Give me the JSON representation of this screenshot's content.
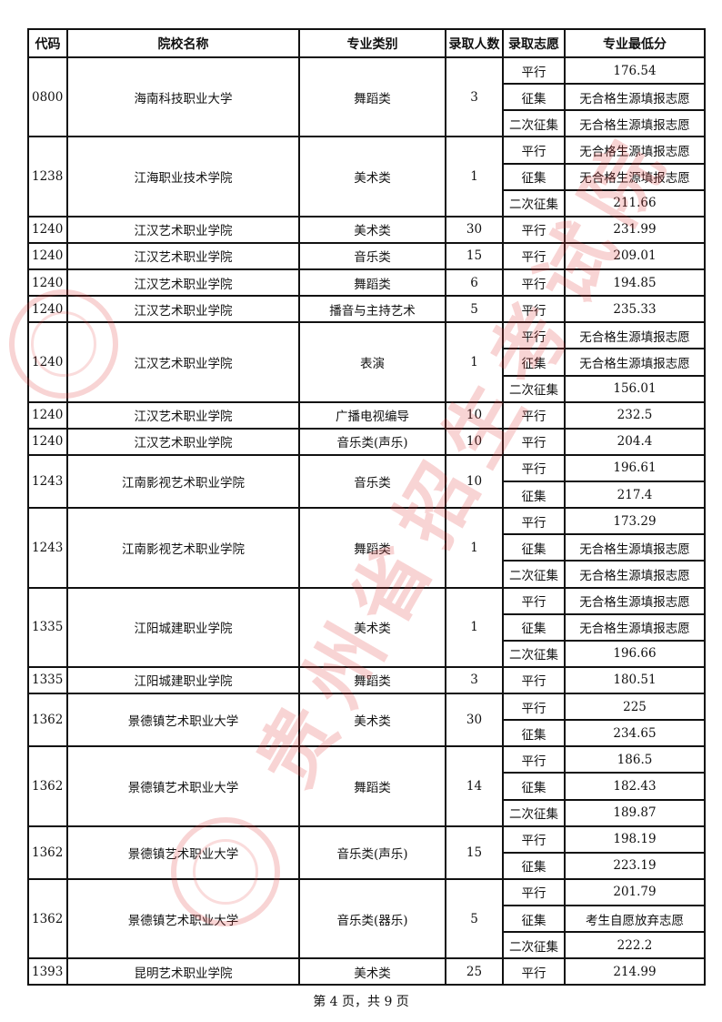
{
  "table": {
    "headers": [
      "代码",
      "院校名称",
      "专业类别",
      "录取人数",
      "录取志愿",
      "专业最低分"
    ],
    "groups": [
      {
        "code": "0800",
        "school": "海南科技职业大学",
        "major": "舞蹈类",
        "count": "3",
        "subs": [
          [
            "平行",
            "176.54"
          ],
          [
            "征集",
            "无合格生源填报志愿"
          ],
          [
            "二次征集",
            "无合格生源填报志愿"
          ]
        ]
      },
      {
        "code": "1238",
        "school": "江海职业技术学院",
        "major": "美术类",
        "count": "1",
        "subs": [
          [
            "平行",
            "无合格生源填报志愿"
          ],
          [
            "征集",
            "无合格生源填报志愿"
          ],
          [
            "二次征集",
            "211.66"
          ]
        ]
      },
      {
        "code": "1240",
        "school": "江汉艺术职业学院",
        "major": "美术类",
        "count": "30",
        "subs": [
          [
            "平行",
            "231.99"
          ]
        ]
      },
      {
        "code": "1240",
        "school": "江汉艺术职业学院",
        "major": "音乐类",
        "count": "15",
        "subs": [
          [
            "平行",
            "209.01"
          ]
        ]
      },
      {
        "code": "1240",
        "school": "江汉艺术职业学院",
        "major": "舞蹈类",
        "count": "6",
        "subs": [
          [
            "平行",
            "194.85"
          ]
        ]
      },
      {
        "code": "1240",
        "school": "江汉艺术职业学院",
        "major": "播音与主持艺术",
        "count": "5",
        "subs": [
          [
            "平行",
            "235.33"
          ]
        ]
      },
      {
        "code": "1240",
        "school": "江汉艺术职业学院",
        "major": "表演",
        "count": "1",
        "subs": [
          [
            "平行",
            "无合格生源填报志愿"
          ],
          [
            "征集",
            "无合格生源填报志愿"
          ],
          [
            "二次征集",
            "156.01"
          ]
        ]
      },
      {
        "code": "1240",
        "school": "江汉艺术职业学院",
        "major": "广播电视编导",
        "count": "10",
        "subs": [
          [
            "平行",
            "232.5"
          ]
        ]
      },
      {
        "code": "1240",
        "school": "江汉艺术职业学院",
        "major": "音乐类(声乐)",
        "count": "10",
        "subs": [
          [
            "平行",
            "204.4"
          ]
        ]
      },
      {
        "code": "1243",
        "school": "江南影视艺术职业学院",
        "major": "音乐类",
        "count": "10",
        "subs": [
          [
            "平行",
            "196.61"
          ],
          [
            "征集",
            "217.4"
          ]
        ]
      },
      {
        "code": "1243",
        "school": "江南影视艺术职业学院",
        "major": "舞蹈类",
        "count": "1",
        "subs": [
          [
            "平行",
            "173.29"
          ],
          [
            "征集",
            "无合格生源填报志愿"
          ],
          [
            "二次征集",
            "无合格生源填报志愿"
          ]
        ]
      },
      {
        "code": "1335",
        "school": "江阳城建职业学院",
        "major": "美术类",
        "count": "1",
        "subs": [
          [
            "平行",
            "无合格生源填报志愿"
          ],
          [
            "征集",
            "无合格生源填报志愿"
          ],
          [
            "二次征集",
            "196.66"
          ]
        ]
      },
      {
        "code": "1335",
        "school": "江阳城建职业学院",
        "major": "舞蹈类",
        "count": "3",
        "subs": [
          [
            "平行",
            "180.51"
          ]
        ]
      },
      {
        "code": "1362",
        "school": "景德镇艺术职业大学",
        "major": "美术类",
        "count": "30",
        "subs": [
          [
            "平行",
            "225"
          ],
          [
            "征集",
            "234.65"
          ]
        ]
      },
      {
        "code": "1362",
        "school": "景德镇艺术职业大学",
        "major": "舞蹈类",
        "count": "14",
        "subs": [
          [
            "平行",
            "186.5"
          ],
          [
            "征集",
            "182.43"
          ],
          [
            "二次征集",
            "189.87"
          ]
        ]
      },
      {
        "code": "1362",
        "school": "景德镇艺术职业大学",
        "major": "音乐类(声乐)",
        "count": "15",
        "subs": [
          [
            "平行",
            "198.19"
          ],
          [
            "征集",
            "223.19"
          ]
        ]
      },
      {
        "code": "1362",
        "school": "景德镇艺术职业大学",
        "major": "音乐类(器乐)",
        "count": "5",
        "subs": [
          [
            "平行",
            "201.79"
          ],
          [
            "征集",
            "考生自愿放弃志愿"
          ],
          [
            "二次征集",
            "222.2"
          ]
        ]
      },
      {
        "code": "1393",
        "school": "昆明艺术职业学院",
        "major": "美术类",
        "count": "25",
        "subs": [
          [
            "平行",
            "214.99"
          ]
        ]
      }
    ]
  },
  "footer": "第 4 页，共 9 页",
  "watermark": {
    "text": "贵州省招生考试院",
    "color": "#e13c3c"
  }
}
